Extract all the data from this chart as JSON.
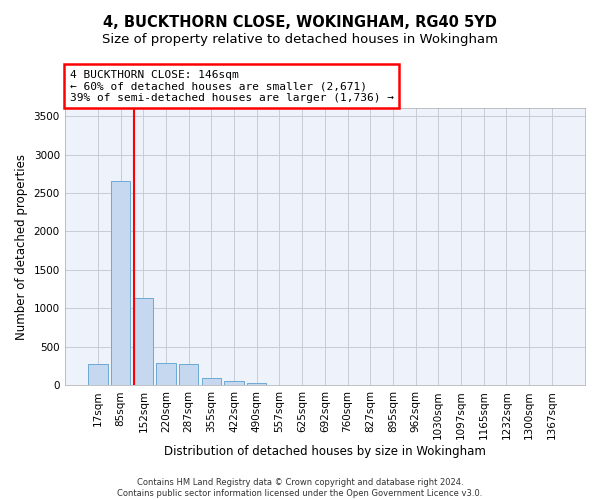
{
  "title1": "4, BUCKTHORN CLOSE, WOKINGHAM, RG40 5YD",
  "title2": "Size of property relative to detached houses in Wokingham",
  "xlabel": "Distribution of detached houses by size in Wokingham",
  "ylabel": "Number of detached properties",
  "bar_labels": [
    "17sqm",
    "85sqm",
    "152sqm",
    "220sqm",
    "287sqm",
    "355sqm",
    "422sqm",
    "490sqm",
    "557sqm",
    "625sqm",
    "692sqm",
    "760sqm",
    "827sqm",
    "895sqm",
    "962sqm",
    "1030sqm",
    "1097sqm",
    "1165sqm",
    "1232sqm",
    "1300sqm",
    "1367sqm"
  ],
  "bar_values": [
    275,
    2650,
    1140,
    285,
    280,
    90,
    55,
    35,
    3,
    2,
    1,
    1,
    0,
    0,
    0,
    0,
    0,
    0,
    0,
    0,
    0
  ],
  "bar_color": "#c5d8f0",
  "bar_edge_color": "#6aaad4",
  "vline_color": "red",
  "vline_x_idx": 2,
  "ylim": [
    0,
    3600
  ],
  "yticks": [
    0,
    500,
    1000,
    1500,
    2000,
    2500,
    3000,
    3500
  ],
  "annotation_text": "4 BUCKTHORN CLOSE: 146sqm\n← 60% of detached houses are smaller (2,671)\n39% of semi-detached houses are larger (1,736) →",
  "bg_color": "#eef2fa",
  "grid_color": "#c8ccd8",
  "footer": "Contains HM Land Registry data © Crown copyright and database right 2024.\nContains public sector information licensed under the Open Government Licence v3.0.",
  "title1_fontsize": 10.5,
  "title2_fontsize": 9.5,
  "xlabel_fontsize": 8.5,
  "ylabel_fontsize": 8.5,
  "tick_fontsize": 7.5,
  "annot_fontsize": 8,
  "footer_fontsize": 6
}
